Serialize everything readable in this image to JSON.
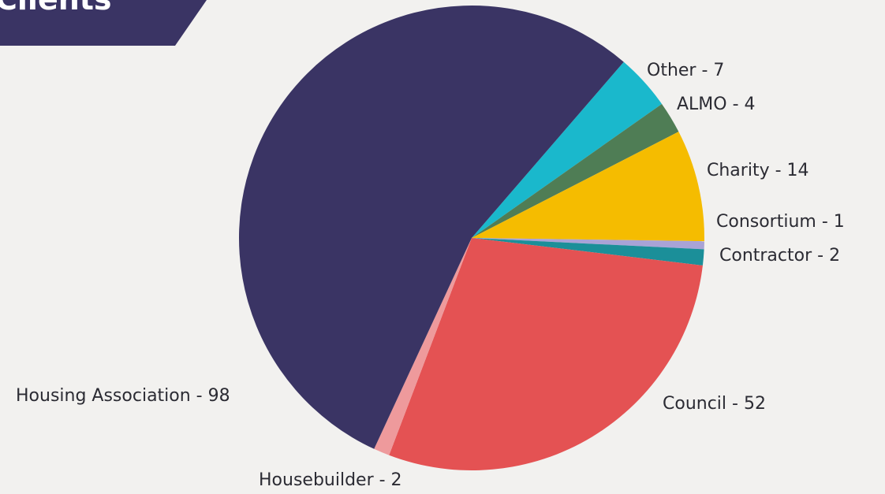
{
  "chart_data": {
    "type": "pie",
    "title": "Clients",
    "categories": [
      "Other - 7",
      "ALMO - 4",
      "Charity - 14",
      "Consortium - 1",
      "Contractor - 2",
      "Council - 52",
      "Housebuilder - 2",
      "Housing Association - 98"
    ],
    "values": [
      7,
      4,
      14,
      1,
      2,
      52,
      2,
      98
    ],
    "colors": [
      "#1ab8cc",
      "#4f7d55",
      "#f5bc00",
      "#a9a3d6",
      "#1b8f99",
      "#e45253",
      "#ee9a9c",
      "#3a3464"
    ]
  }
}
